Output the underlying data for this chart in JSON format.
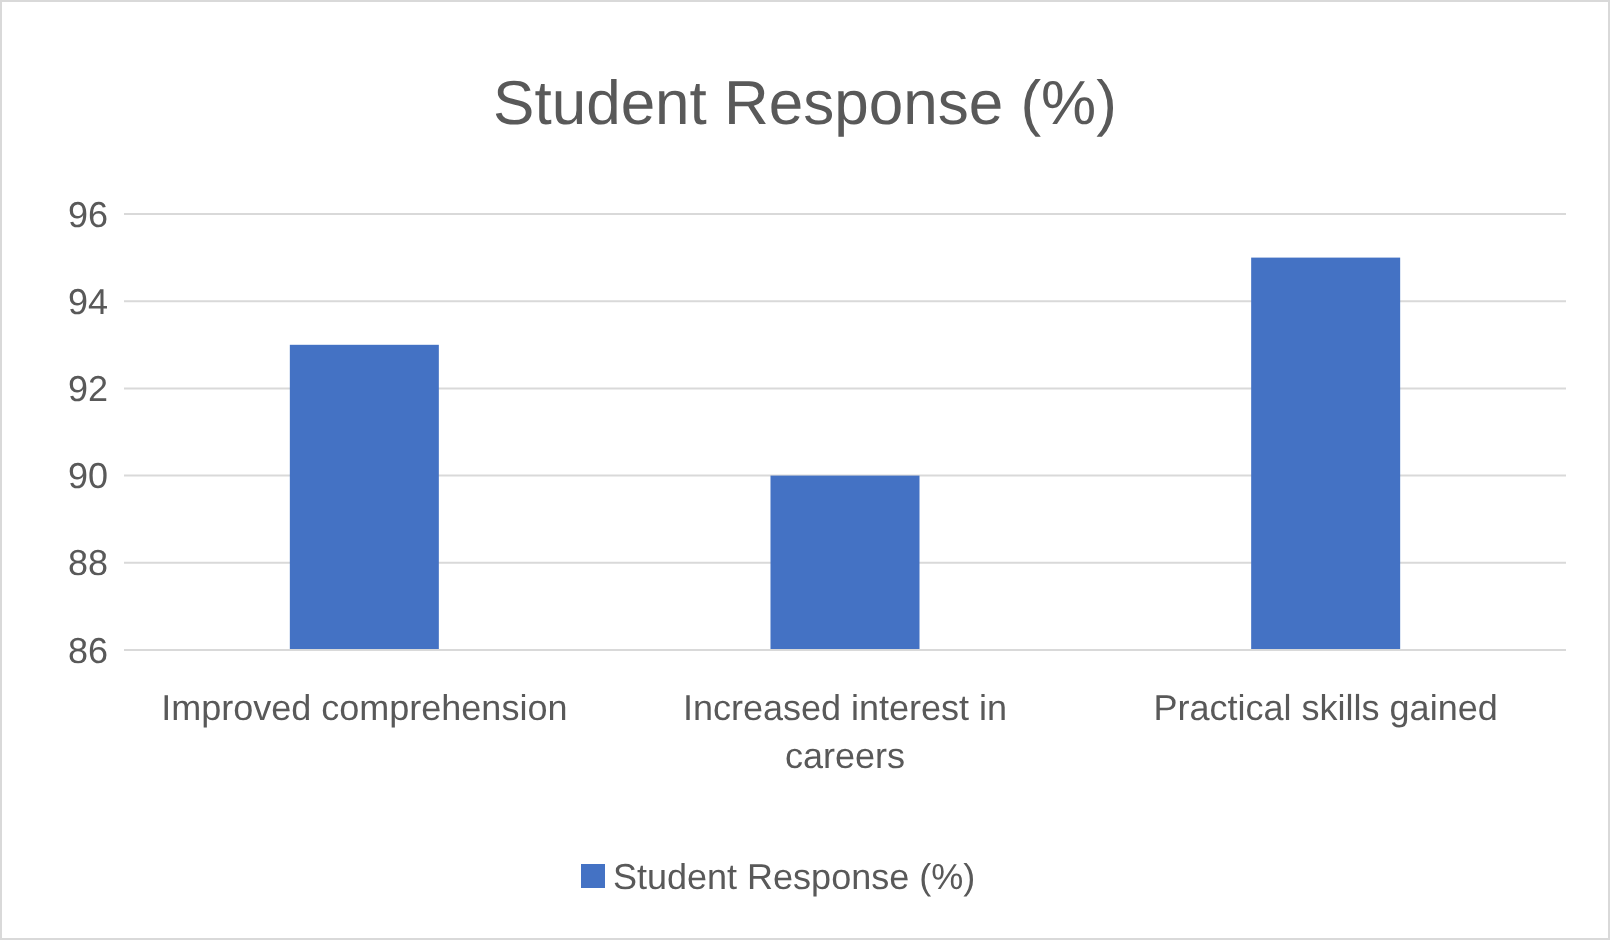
{
  "chart_data": {
    "type": "bar",
    "title": "Student Response (%)",
    "categories": [
      "Improved comprehension",
      "Increased interest in careers",
      "Practical skills gained"
    ],
    "series": [
      {
        "name": "Student Response (%)",
        "color": "#4472c4",
        "values": [
          93,
          90,
          95
        ]
      }
    ],
    "ylim": [
      86,
      96
    ],
    "yticks": [
      86,
      88,
      90,
      92,
      94,
      96
    ],
    "grid": "y",
    "legend": "bottom"
  }
}
